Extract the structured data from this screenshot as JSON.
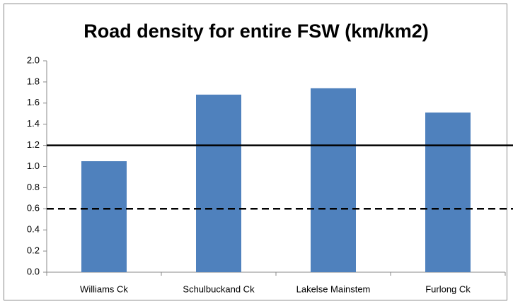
{
  "chart_data": {
    "type": "bar",
    "title": "Road density for entire FSW (km/km2)",
    "categories": [
      "Williams Ck",
      "Schulbuckand Ck",
      "Lakelse Mainstem",
      "Furlong Ck"
    ],
    "values": [
      1.05,
      1.68,
      1.74,
      1.51
    ],
    "color": "#4f81bd",
    "ylim": [
      0,
      2
    ],
    "yticks": [
      {
        "value": 0,
        "label": "0.0"
      },
      {
        "value": 0.2,
        "label": "0.2"
      },
      {
        "value": 0.4,
        "label": "0.4"
      },
      {
        "value": 0.6,
        "label": "0.6"
      },
      {
        "value": 0.8,
        "label": "0.8"
      },
      {
        "value": 1,
        "label": "1.0"
      },
      {
        "value": 1.2,
        "label": "1.2"
      },
      {
        "value": 1.4,
        "label": "1.4"
      },
      {
        "value": 1.6,
        "label": "1.6"
      },
      {
        "value": 1.8,
        "label": "1.8"
      },
      {
        "value": 2,
        "label": "2.0"
      }
    ],
    "grid": false,
    "reference_lines": [
      {
        "value": 1.2,
        "style": "solid"
      },
      {
        "value": 0.6,
        "style": "dashed"
      }
    ]
  }
}
